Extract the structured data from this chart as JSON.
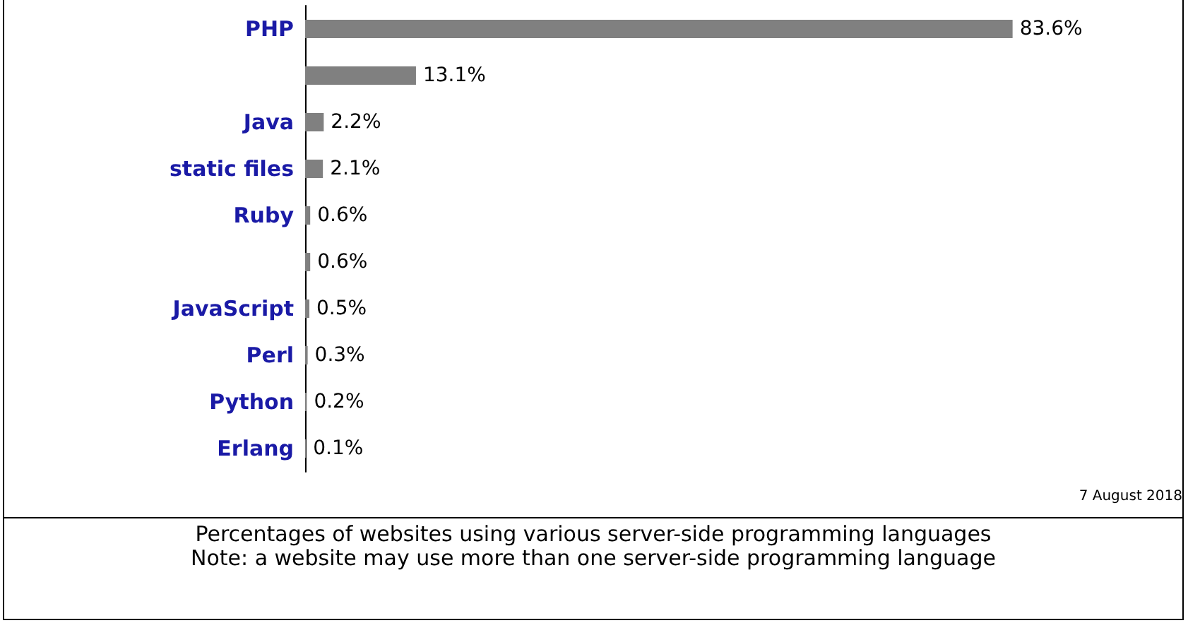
{
  "chart_data": {
    "type": "bar",
    "orientation": "horizontal",
    "tick_labels": "y",
    "categories": [
      "PHP",
      null,
      "Java",
      "static files",
      "Ruby",
      null,
      "JavaScript",
      "Perl",
      "Python",
      "Erlang"
    ],
    "values": [
      83.6,
      13.1,
      2.2,
      2.1,
      0.6,
      0.6,
      0.5,
      0.3,
      0.2,
      0.1
    ],
    "value_labels": [
      "83.6%",
      "13.1%",
      "2.2%",
      "2.1%",
      "0.6%",
      "0.6%",
      "0.5%",
      "0.3%",
      "0.2%",
      "0.1%"
    ],
    "color": "#808080",
    "annotations": [
      "7 August 2018",
      "Percentages of websites using various server-side programming languages",
      "Note: a website may use more than one server-side programming language"
    ]
  }
}
